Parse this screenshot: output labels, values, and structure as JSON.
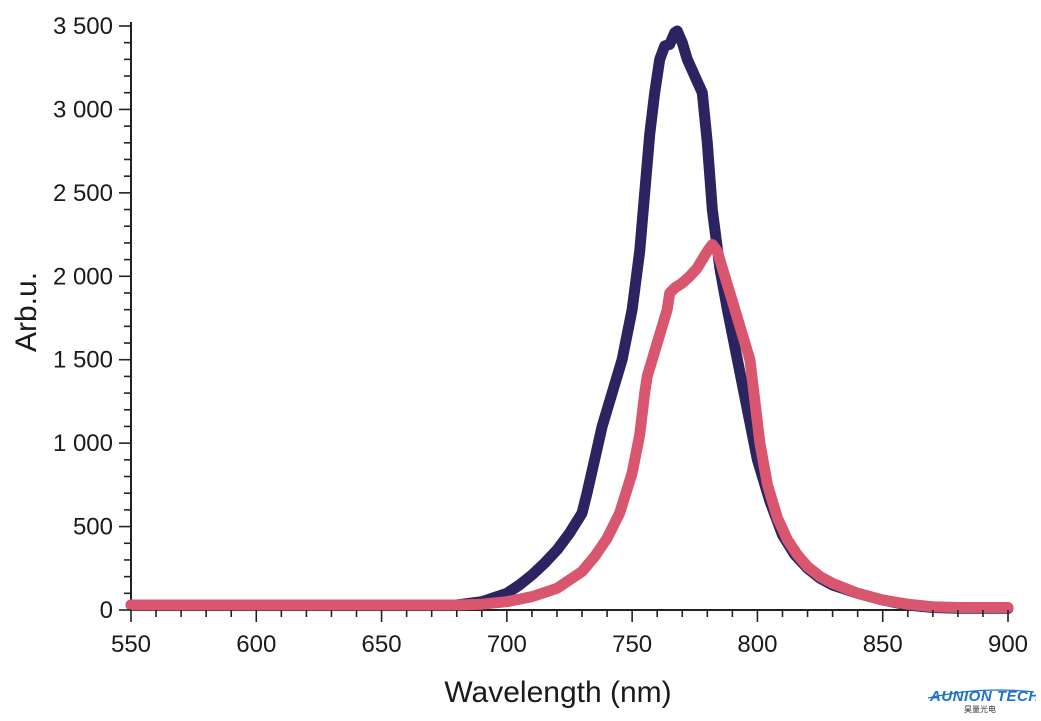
{
  "chart_data": {
    "type": "line",
    "title": "",
    "xlabel": "Wavelength (nm)",
    "ylabel": "Arb.u.",
    "xlim": [
      550,
      900
    ],
    "ylim": [
      0,
      3500
    ],
    "x_ticks": [
      550,
      600,
      650,
      700,
      750,
      800,
      850,
      900
    ],
    "x_tick_labels": [
      "550",
      "600",
      "650",
      "700",
      "750",
      "800",
      "850",
      "900"
    ],
    "y_ticks": [
      0,
      500,
      1000,
      1500,
      2000,
      2500,
      3000,
      3500
    ],
    "y_tick_labels": [
      "0",
      "500",
      "1 000",
      "1 500",
      "2 000",
      "2 500",
      "3 000",
      "3 500"
    ],
    "grid": false,
    "legend": "none",
    "series": [
      {
        "color": "#2b2461",
        "points": [
          [
            550,
            30
          ],
          [
            600,
            30
          ],
          [
            650,
            30
          ],
          [
            680,
            30
          ],
          [
            690,
            50
          ],
          [
            700,
            100
          ],
          [
            705,
            150
          ],
          [
            710,
            210
          ],
          [
            715,
            280
          ],
          [
            720,
            360
          ],
          [
            725,
            460
          ],
          [
            730,
            580
          ],
          [
            732,
            700
          ],
          [
            735,
            900
          ],
          [
            738,
            1100
          ],
          [
            742,
            1300
          ],
          [
            746,
            1500
          ],
          [
            750,
            1800
          ],
          [
            753,
            2150
          ],
          [
            755,
            2500
          ],
          [
            757,
            2850
          ],
          [
            759,
            3100
          ],
          [
            761,
            3300
          ],
          [
            763,
            3380
          ],
          [
            765,
            3390
          ],
          [
            767,
            3460
          ],
          [
            768,
            3470
          ],
          [
            770,
            3400
          ],
          [
            772,
            3300
          ],
          [
            775,
            3200
          ],
          [
            778,
            3100
          ],
          [
            780,
            2800
          ],
          [
            782,
            2400
          ],
          [
            785,
            2050
          ],
          [
            788,
            1800
          ],
          [
            792,
            1500
          ],
          [
            796,
            1200
          ],
          [
            800,
            900
          ],
          [
            805,
            650
          ],
          [
            810,
            450
          ],
          [
            815,
            330
          ],
          [
            820,
            250
          ],
          [
            825,
            190
          ],
          [
            830,
            150
          ],
          [
            840,
            100
          ],
          [
            850,
            60
          ],
          [
            860,
            30
          ],
          [
            870,
            15
          ],
          [
            880,
            10
          ],
          [
            900,
            10
          ]
        ]
      },
      {
        "color": "#d9576e",
        "points": [
          [
            550,
            30
          ],
          [
            600,
            30
          ],
          [
            650,
            30
          ],
          [
            680,
            30
          ],
          [
            690,
            35
          ],
          [
            700,
            50
          ],
          [
            710,
            80
          ],
          [
            720,
            130
          ],
          [
            730,
            230
          ],
          [
            735,
            320
          ],
          [
            740,
            430
          ],
          [
            745,
            580
          ],
          [
            750,
            820
          ],
          [
            753,
            1050
          ],
          [
            755,
            1300
          ],
          [
            756,
            1400
          ],
          [
            758,
            1500
          ],
          [
            760,
            1600
          ],
          [
            762,
            1700
          ],
          [
            764,
            1800
          ],
          [
            765,
            1900
          ],
          [
            767,
            1930
          ],
          [
            770,
            1960
          ],
          [
            773,
            2000
          ],
          [
            776,
            2050
          ],
          [
            778,
            2100
          ],
          [
            780,
            2150
          ],
          [
            782,
            2190
          ],
          [
            784,
            2150
          ],
          [
            786,
            2050
          ],
          [
            790,
            1850
          ],
          [
            794,
            1650
          ],
          [
            797,
            1500
          ],
          [
            799,
            1250
          ],
          [
            801,
            1000
          ],
          [
            804,
            750
          ],
          [
            808,
            550
          ],
          [
            812,
            420
          ],
          [
            816,
            330
          ],
          [
            820,
            260
          ],
          [
            825,
            200
          ],
          [
            830,
            160
          ],
          [
            840,
            100
          ],
          [
            850,
            60
          ],
          [
            860,
            35
          ],
          [
            870,
            20
          ],
          [
            880,
            15
          ],
          [
            900,
            15
          ]
        ]
      }
    ]
  },
  "logo": {
    "name": "AUNION TECH",
    "sub": "昊量光电"
  }
}
